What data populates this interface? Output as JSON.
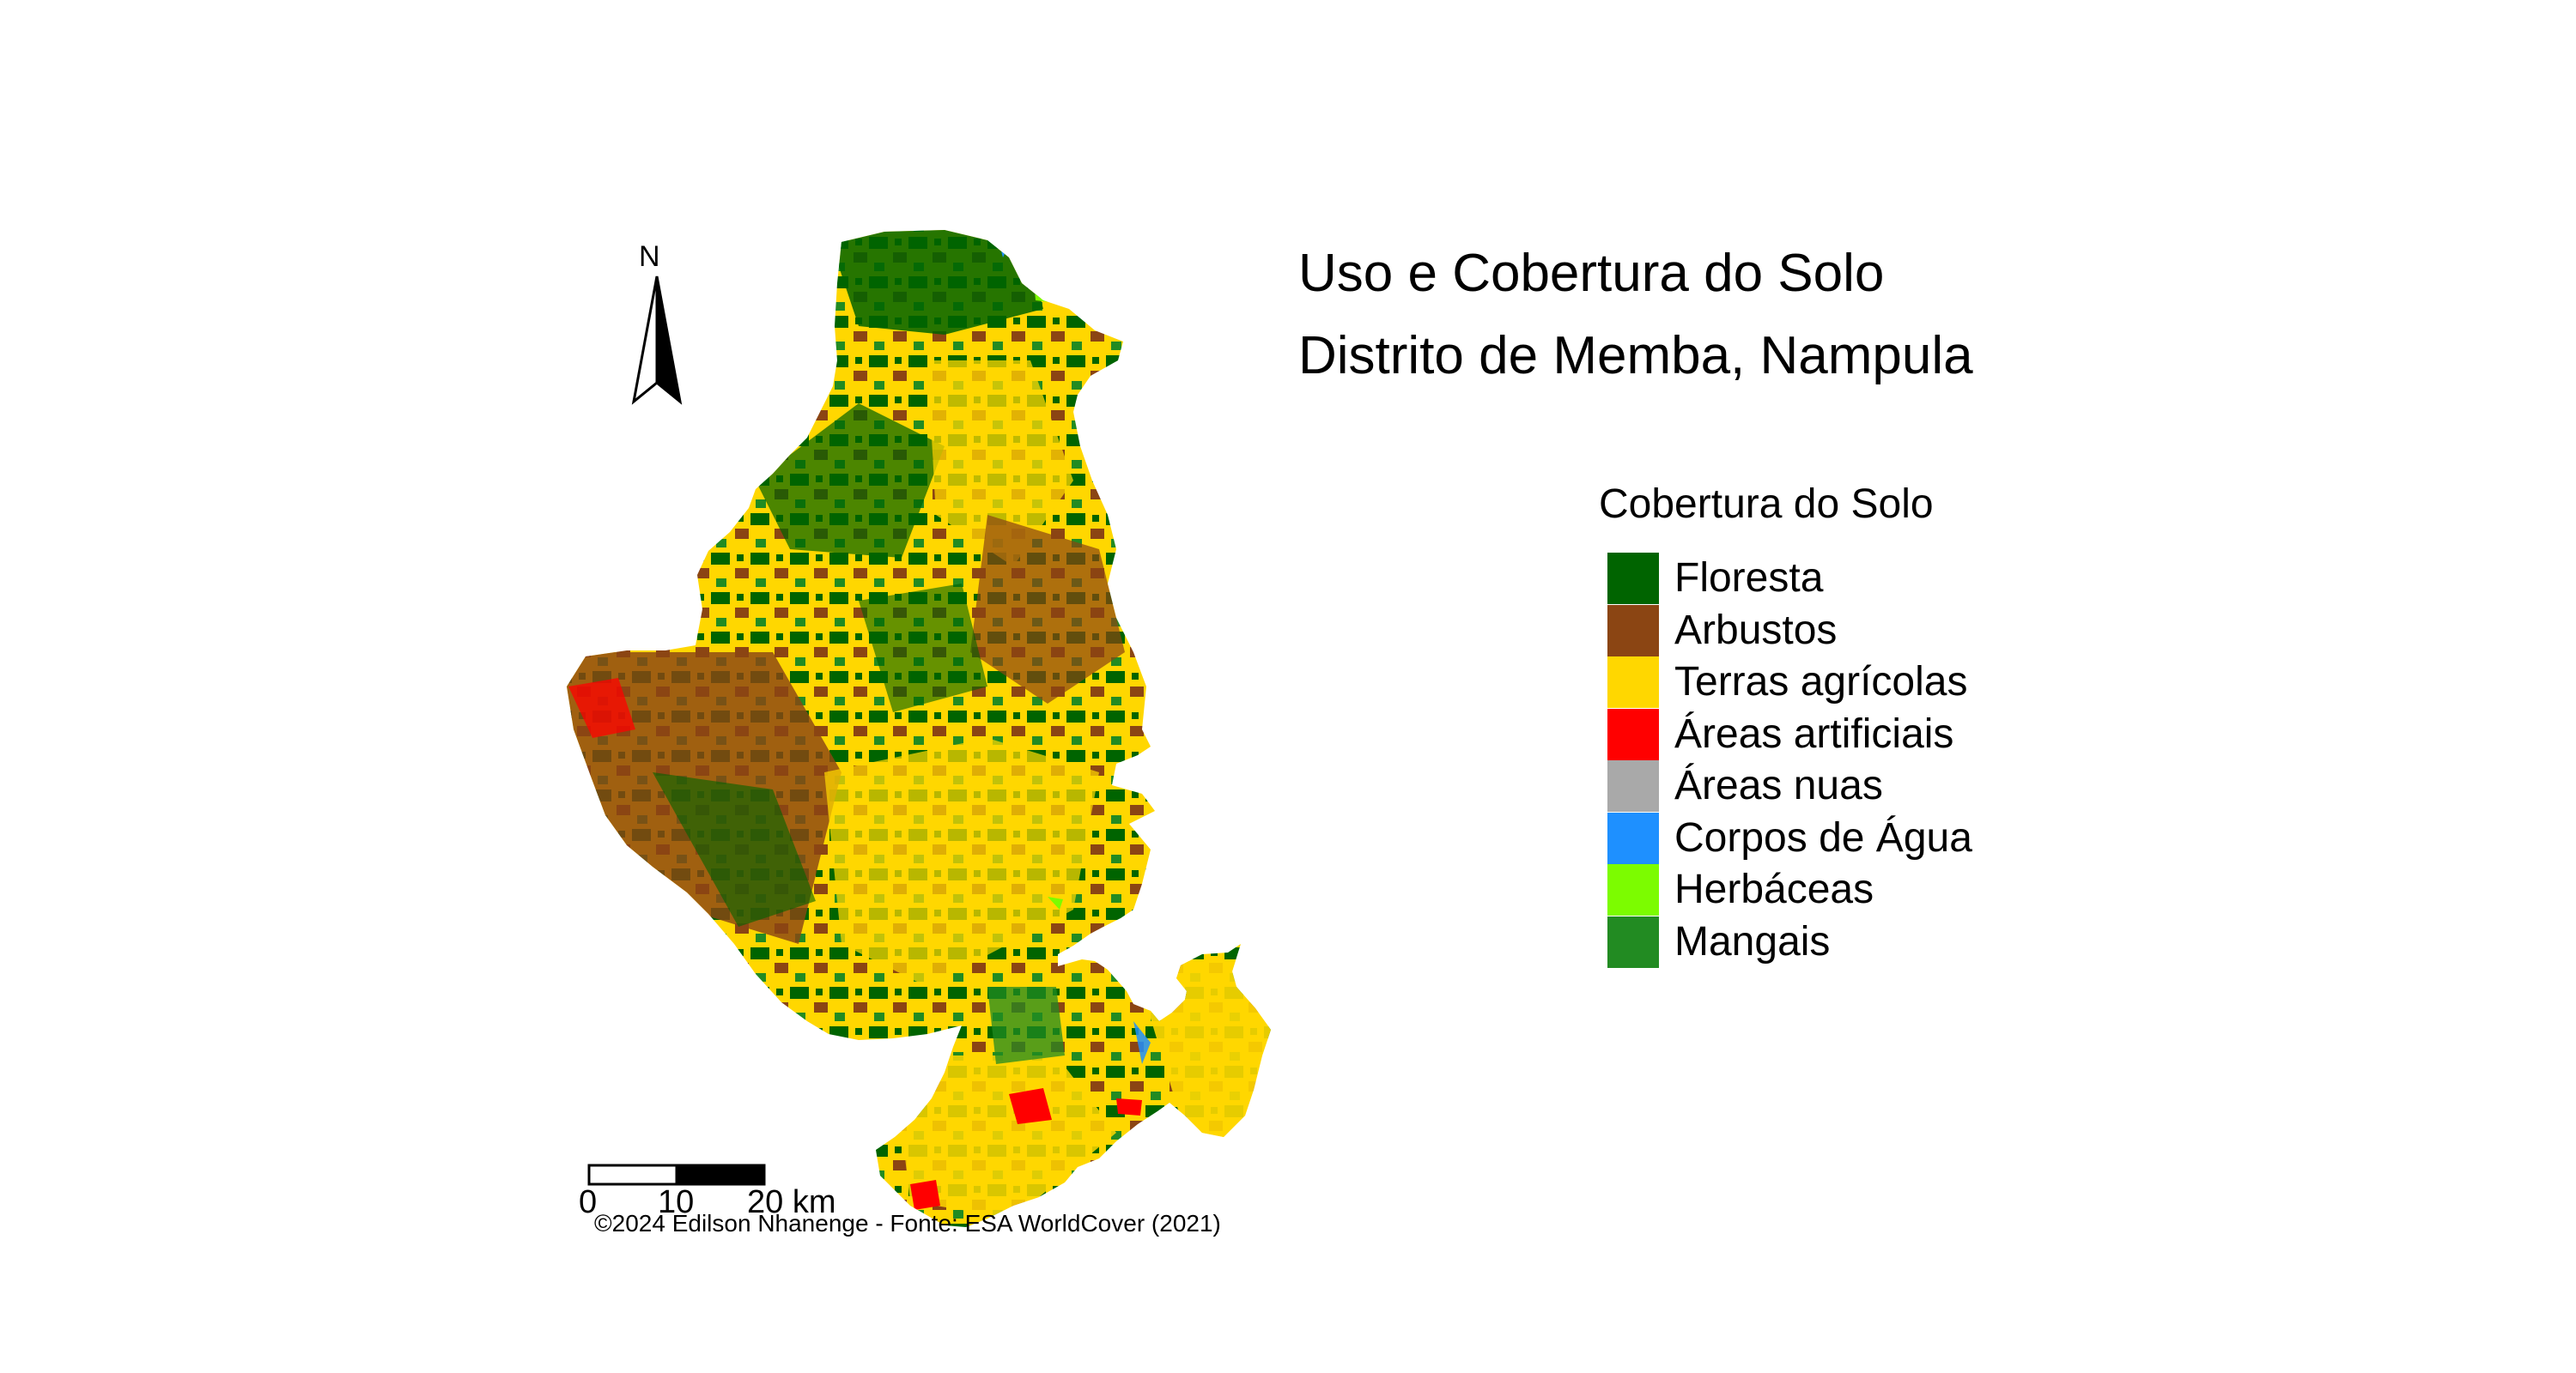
{
  "title": {
    "line1": "Uso e Cobertura do Solo",
    "line2": "Distrito de Memba, Nampula"
  },
  "legend": {
    "title": "Cobertura do Solo",
    "items": [
      {
        "label": "Floresta",
        "color": "#006400"
      },
      {
        "label": "Arbustos",
        "color": "#8B4513"
      },
      {
        "label": "Terras agrícolas",
        "color": "#FFD700"
      },
      {
        "label": "Áreas artificiais",
        "color": "#FF0000"
      },
      {
        "label": "Áreas nuas",
        "color": "#A9A9A9"
      },
      {
        "label": "Corpos de Água",
        "color": "#1E90FF"
      },
      {
        "label": "Herbáceas",
        "color": "#7CFC00"
      },
      {
        "label": "Mangais",
        "color": "#228B22"
      }
    ]
  },
  "north_arrow": {
    "label": "N"
  },
  "scale_bar": {
    "labels": [
      "0",
      "10",
      "20 km"
    ]
  },
  "credit": "©2024 Edilson Nhanenge - Fonte: ESA WorldCover (2021)"
}
